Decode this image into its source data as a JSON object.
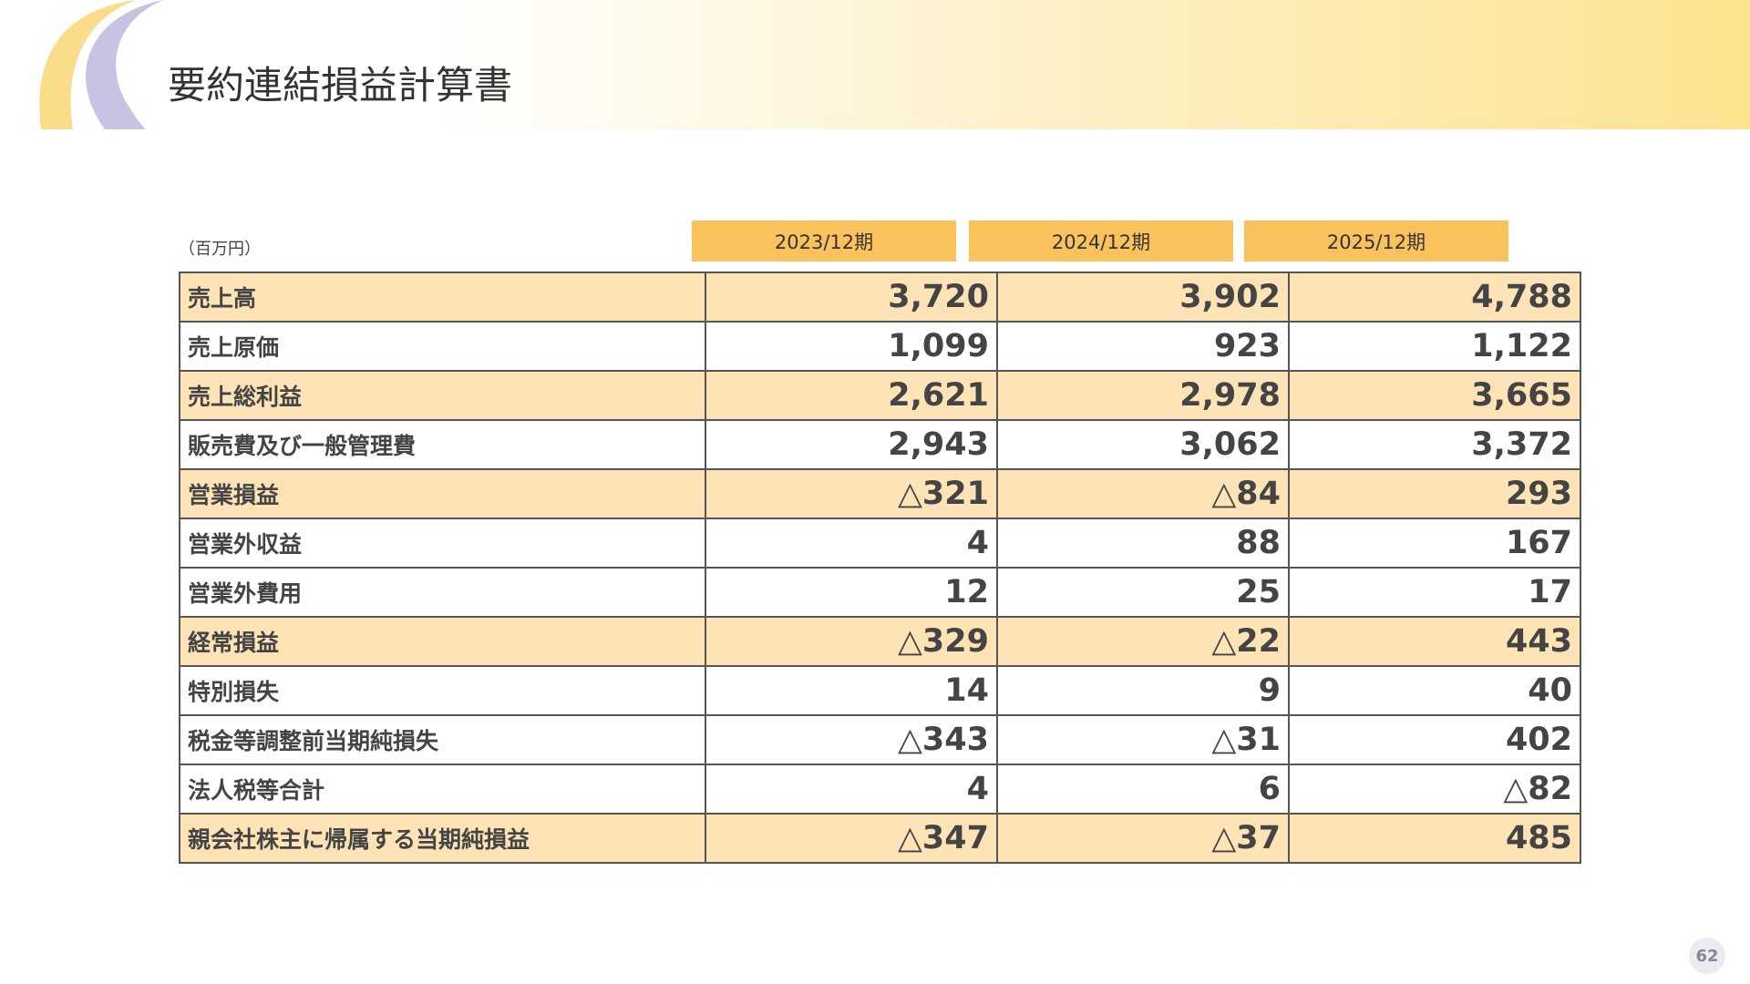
{
  "header": {
    "title": "要約連結損益計算書"
  },
  "table": {
    "unit": "（百万円）",
    "columns": [
      "2023/12期",
      "2024/12期",
      "2025/12期"
    ],
    "rows": [
      {
        "label": "売上高",
        "values": [
          "3,720",
          "3,902",
          "4,788"
        ],
        "highlight": true
      },
      {
        "label": "売上原価",
        "values": [
          "1,099",
          "923",
          "1,122"
        ],
        "highlight": false
      },
      {
        "label": "売上総利益",
        "values": [
          "2,621",
          "2,978",
          "3,665"
        ],
        "highlight": true
      },
      {
        "label": "販売費及び一般管理費",
        "values": [
          "2,943",
          "3,062",
          "3,372"
        ],
        "highlight": false
      },
      {
        "label": "営業損益",
        "values": [
          "△321",
          "△84",
          "293"
        ],
        "highlight": true
      },
      {
        "label": "営業外収益",
        "values": [
          "4",
          "88",
          "167"
        ],
        "highlight": false
      },
      {
        "label": "営業外費用",
        "values": [
          "12",
          "25",
          "17"
        ],
        "highlight": false
      },
      {
        "label": "経常損益",
        "values": [
          "△329",
          "△22",
          "443"
        ],
        "highlight": true
      },
      {
        "label": "特別損失",
        "values": [
          "14",
          "9",
          "40"
        ],
        "highlight": false
      },
      {
        "label": "税金等調整前当期純損失",
        "values": [
          "△343",
          "△31",
          "402"
        ],
        "highlight": false
      },
      {
        "label": "法人税等合計",
        "values": [
          "4",
          "6",
          "△82"
        ],
        "highlight": false
      },
      {
        "label": "親会社株主に帰属する当期純損益",
        "values": [
          "△347",
          "△37",
          "485"
        ],
        "highlight": true
      }
    ]
  },
  "page_number": "62"
}
